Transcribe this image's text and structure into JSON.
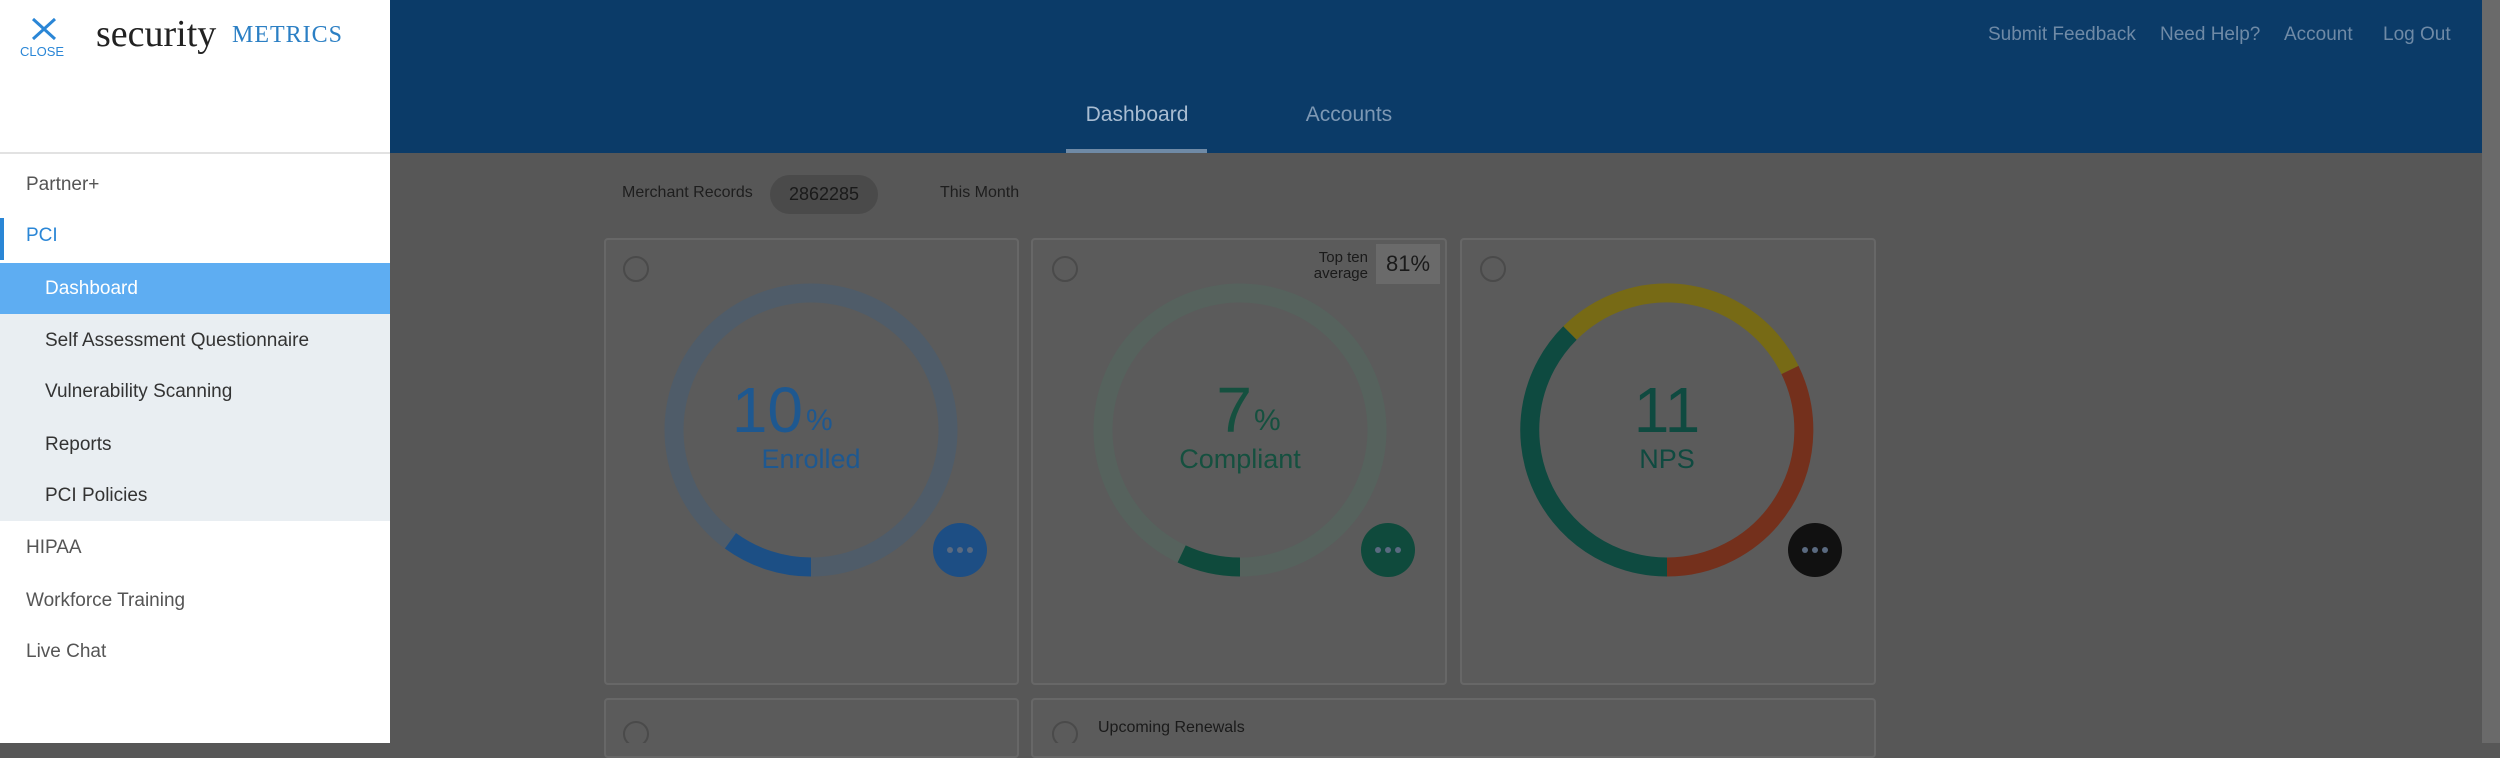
{
  "sidebar": {
    "close": "CLOSE",
    "logo": {
      "word": "security",
      "mark": "METRICS"
    },
    "nav": [
      "Partner+",
      "PCI",
      "HIPAA",
      "Workforce Training",
      "Live Chat"
    ],
    "pci_items": [
      "Dashboard",
      "Self Assessment Questionnaire",
      "Vulnerability Scanning",
      "Reports",
      "PCI Policies"
    ]
  },
  "header": {
    "links": [
      "Submit Feedback",
      "Need Help?",
      "Account",
      "Log Out"
    ],
    "tabs": [
      "Dashboard",
      "Accounts"
    ]
  },
  "filters": {
    "label": "Merchant Records",
    "value": "2862285",
    "period": "This Month"
  },
  "cards": [
    {
      "value": 10,
      "unit": "%",
      "label": "Enrolled"
    },
    {
      "value": 7,
      "unit": "%",
      "label": "Compliant",
      "badge_label": "Top ten average",
      "badge_value": "81%"
    },
    {
      "value": 11,
      "label": "NPS"
    }
  ],
  "bottom_cards": [
    {
      "title": "Upcoming Renewals"
    }
  ]
}
